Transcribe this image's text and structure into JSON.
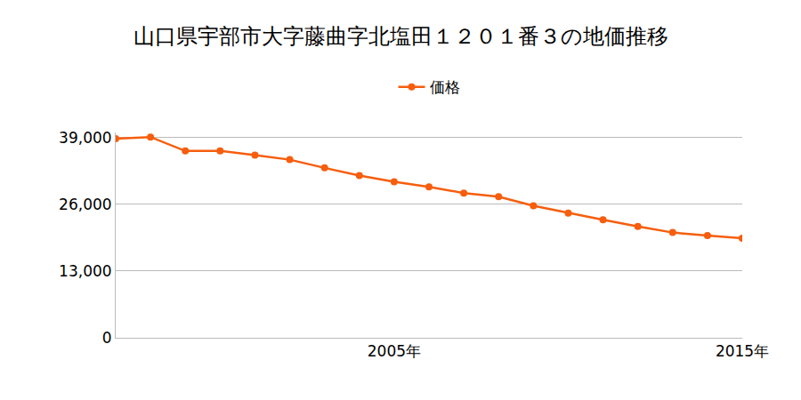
{
  "chart_data": {
    "type": "line",
    "title": "山口県宇部市大字藤曲字北塩田１２０１番３の地価推移",
    "x": [
      1997,
      1998,
      1999,
      2000,
      2001,
      2002,
      2003,
      2004,
      2005,
      2006,
      2007,
      2008,
      2009,
      2010,
      2011,
      2012,
      2013,
      2014,
      2015
    ],
    "series": [
      {
        "name": "価格",
        "color": "#f65e0e",
        "marker": "circle",
        "line_style": "solid",
        "values": [
          38800,
          39100,
          36400,
          36400,
          35600,
          34700,
          33100,
          31600,
          30400,
          29400,
          28200,
          27500,
          25700,
          24300,
          23000,
          21700,
          20500,
          19900,
          19400
        ]
      }
    ],
    "xlim": [
      1997,
      2015
    ],
    "xticks": [
      {
        "value": 2005,
        "label": "2005年"
      },
      {
        "value": 2015,
        "label": "2015年"
      }
    ],
    "ylim": [
      0,
      40000
    ],
    "yticks": [
      0,
      {
        "value": 13000,
        "label": "13,000"
      },
      {
        "value": 26000,
        "label": "26,000"
      },
      {
        "value": 39000,
        "label": "39,000"
      }
    ],
    "grid": true,
    "legend": "top"
  }
}
